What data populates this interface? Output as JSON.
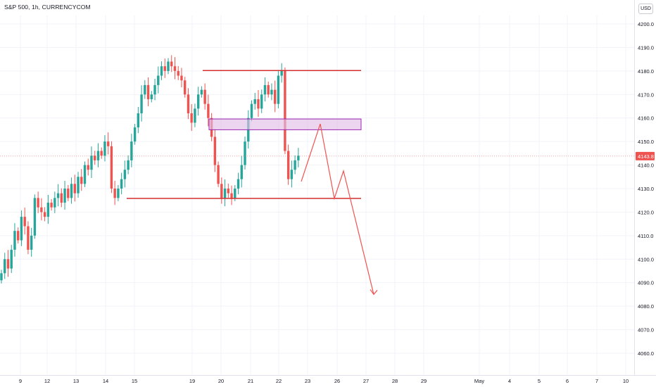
{
  "header": {
    "title": "S&P 500, 1h, CURRENCYCOM"
  },
  "currency_button": "USD",
  "colors": {
    "up": "#26a69a",
    "down": "#ef5350",
    "drawing": "#d32f2f",
    "zone_fill": "#e1bee7",
    "zone_stroke": "#9c27b0",
    "price_tag": "#ef5350",
    "grid": "#f0f3fa"
  },
  "chart_data": {
    "type": "candlestick",
    "symbol": "S&P 500",
    "timeframe": "1h",
    "source": "CURRENCYCOM",
    "currency": "USD",
    "ylim": [
      4052,
      4205
    ],
    "y_ticks": [
      4200,
      4190,
      4180,
      4170,
      4160,
      4150,
      4140,
      4130,
      4120,
      4110,
      4100,
      4090,
      4080,
      4070,
      4060
    ],
    "last_price": "4143.8",
    "x_ticks": [
      "9",
      "12",
      "13",
      "14",
      "15",
      "19",
      "20",
      "21",
      "22",
      "23",
      "26",
      "27",
      "28",
      "29",
      "May",
      "4",
      "5",
      "6",
      "7",
      "10"
    ],
    "close_path": [
      4094,
      4100,
      4096,
      4104,
      4112,
      4108,
      4118,
      4114,
      4104,
      4110,
      4126,
      4122,
      4120,
      4118,
      4124,
      4122,
      4126,
      4128,
      4124,
      4130,
      4126,
      4132,
      4128,
      4135,
      4132,
      4140,
      4138,
      4144,
      4142,
      4146,
      4144,
      4150,
      4148,
      4130,
      4126,
      4130,
      4134,
      4138,
      4142,
      4150,
      4156,
      4162,
      4170,
      4174,
      4168,
      4170,
      4174,
      4178,
      4182,
      4180,
      4184,
      4182,
      4180,
      4178,
      4176,
      4170,
      4162,
      4158,
      4164,
      4170,
      4172,
      4166,
      4160,
      4152,
      4140,
      4132,
      4126,
      4130,
      4128,
      4126,
      4130,
      4134,
      4140,
      4150,
      4160,
      4166,
      4168,
      4164,
      4170,
      4174,
      4170,
      4172,
      4166,
      4178,
      4180,
      4146,
      4134,
      4138,
      4142,
      4144
    ],
    "drawings": {
      "resistance_line": 4180.2,
      "support_line": 4125.8,
      "supply_zone": [
        4155,
        4159.6
      ],
      "projection_path": [
        {
          "x": "23",
          "y": 4133
        },
        {
          "x": "23",
          "y": 4157.5
        },
        {
          "x": "26",
          "y": 4125.8
        },
        {
          "x": "26",
          "y": 4137.5
        },
        {
          "x": "27",
          "y": 4085
        }
      ]
    }
  }
}
